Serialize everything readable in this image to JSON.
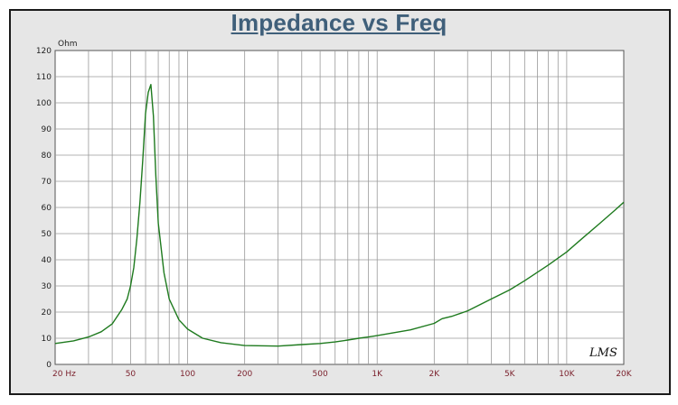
{
  "chart_data": {
    "type": "line",
    "title": "Impedance vs Freq",
    "y_unit": "Ohm",
    "xscale": "log",
    "xlim": [
      20,
      20000
    ],
    "ylim": [
      0,
      120
    ],
    "grid": true,
    "y_ticks": [
      "0",
      "10",
      "20",
      "30",
      "40",
      "50",
      "60",
      "70",
      "80",
      "90",
      "100",
      "110",
      "120"
    ],
    "x_ticks": [
      {
        "value": 20,
        "label": "20  Hz"
      },
      {
        "value": 50,
        "label": "50"
      },
      {
        "value": 100,
        "label": "100"
      },
      {
        "value": 200,
        "label": "200"
      },
      {
        "value": 500,
        "label": "500"
      },
      {
        "value": 1000,
        "label": "1K"
      },
      {
        "value": 2000,
        "label": "2K"
      },
      {
        "value": 5000,
        "label": "5K"
      },
      {
        "value": 10000,
        "label": "10K"
      },
      {
        "value": 20000,
        "label": "20K"
      }
    ],
    "series": [
      {
        "color": "#1e7a1e",
        "x": [
          20,
          25,
          30,
          35,
          40,
          45,
          48,
          50,
          52,
          54,
          56,
          58,
          60,
          62,
          64,
          66,
          68,
          70,
          75,
          80,
          90,
          100,
          120,
          150,
          200,
          300,
          400,
          500,
          600,
          700,
          800,
          900,
          1000,
          1200,
          1500,
          2000,
          2200,
          2500,
          3000,
          4000,
          5000,
          6000,
          8000,
          10000,
          12000,
          15000,
          18000,
          20000
        ],
        "y": [
          8,
          9,
          10.5,
          12.5,
          15.5,
          21,
          25,
          30,
          37,
          48,
          62,
          78,
          96,
          104,
          107,
          95,
          72,
          54,
          35,
          25,
          17,
          13.5,
          10,
          8.3,
          7.2,
          7,
          7.6,
          8,
          8.6,
          9.3,
          10,
          10.5,
          11,
          12,
          13.2,
          15.7,
          17.5,
          18.5,
          20.5,
          25,
          28.5,
          32,
          38,
          43,
          48,
          54,
          59,
          62
        ]
      }
    ],
    "annotations": [
      "LMS"
    ]
  }
}
